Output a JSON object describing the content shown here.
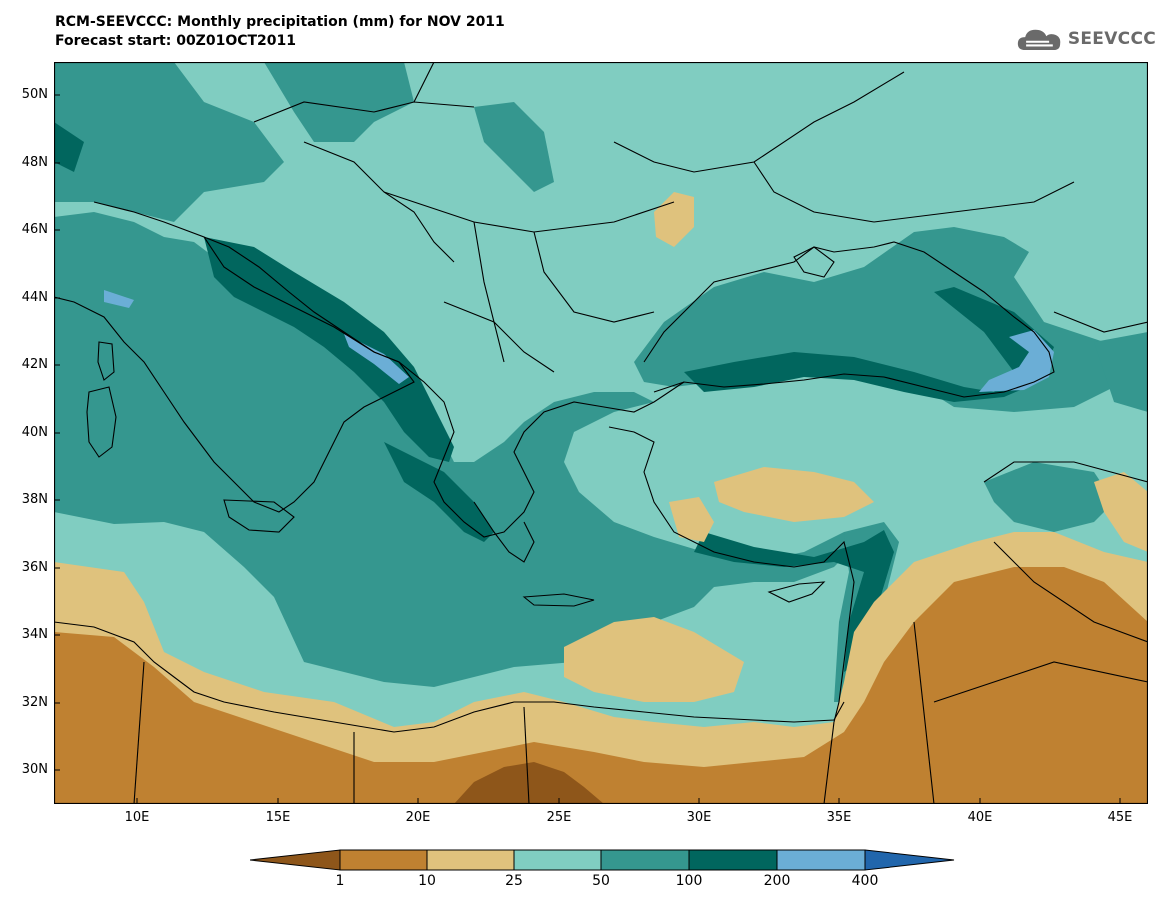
{
  "header": {
    "title": "RCM-SEEVCCC: Monthly precipitation (mm) for NOV 2011",
    "subtitle": "Forecast start: 00Z01OCT2011"
  },
  "logo": {
    "text": "SEEVCCC",
    "icon": "cloud-icon"
  },
  "map": {
    "lat_labels": [
      "50N",
      "48N",
      "46N",
      "44N",
      "42N",
      "40N",
      "38N",
      "36N",
      "34N",
      "32N",
      "30N"
    ],
    "lon_labels": [
      "10E",
      "15E",
      "20E",
      "25E",
      "30E",
      "35E",
      "40E",
      "45E"
    ],
    "lat_range": [
      29,
      51
    ],
    "lon_range": [
      7,
      46
    ],
    "colors": {
      "lt1": "#8e561a",
      "r1_10": "#bf8131",
      "r10_25": "#dfc27d",
      "r25_50": "#80cdc1",
      "r50_100": "#35978f",
      "r100_200": "#01665e",
      "r200_400": "#6baed6",
      "gt400": "#2166ac"
    }
  },
  "colorbar": {
    "labels": [
      "1",
      "10",
      "25",
      "50",
      "100",
      "200",
      "400"
    ]
  }
}
